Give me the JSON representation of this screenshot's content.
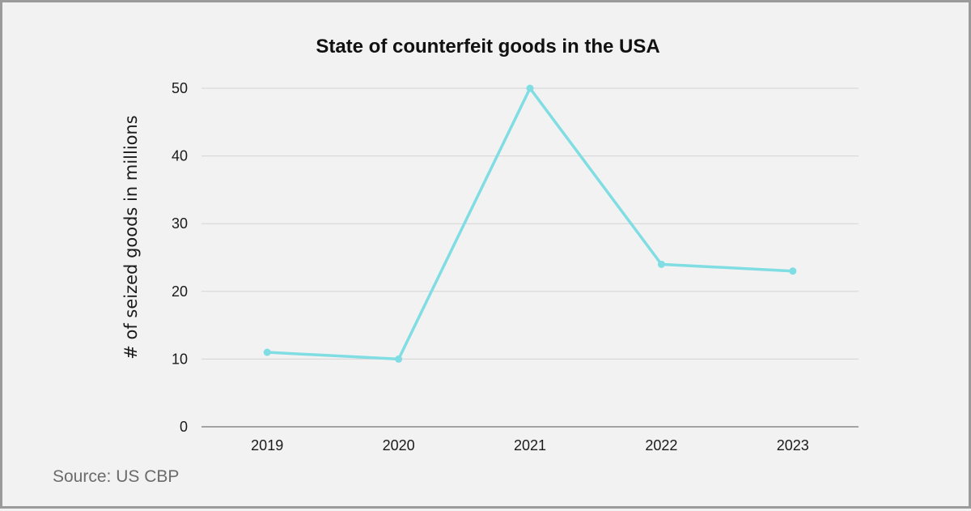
{
  "chart_data": {
    "type": "line",
    "title": "State of counterfeit goods in the USA",
    "xlabel": "",
    "ylabel": "# of seized goods in millions",
    "categories": [
      "2019",
      "2020",
      "2021",
      "2022",
      "2023"
    ],
    "series": [
      {
        "values": [
          11,
          10,
          50,
          24,
          23
        ]
      }
    ],
    "ylim": [
      0,
      50
    ],
    "yticks": [
      0,
      10,
      20,
      30,
      40,
      50
    ],
    "grid": true,
    "colors": {
      "line": "#7fdde3",
      "grid": "#d4d4d4",
      "axis": "#8a8a8a"
    }
  },
  "source": "Source: US CBP"
}
